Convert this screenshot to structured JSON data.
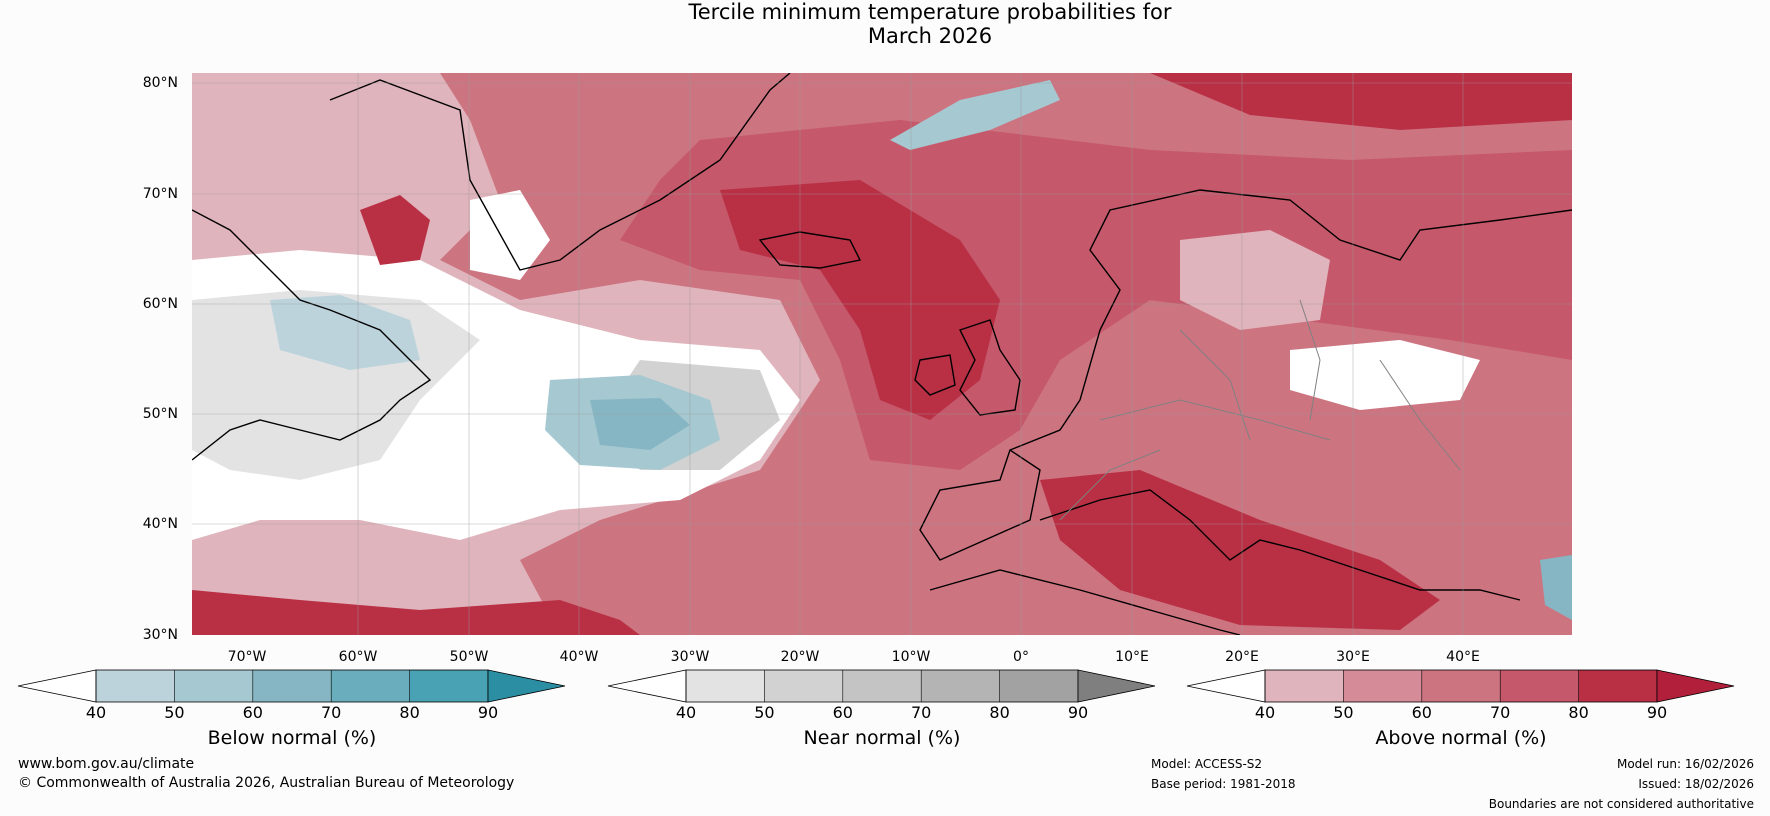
{
  "title": {
    "line1": "Tercile minimum temperature probabilities for",
    "line2": "March 2026"
  },
  "map": {
    "latitude_labels": [
      "80°N",
      "70°N",
      "60°N",
      "50°N",
      "40°N",
      "30°N"
    ],
    "longitude_labels": [
      "70°W",
      "60°W",
      "50°W",
      "40°W",
      "30°W",
      "20°W",
      "10°W",
      "0°",
      "10°E",
      "20°E",
      "30°E",
      "40°E"
    ],
    "colors": {
      "ocean_above_high": "#b93045",
      "above_40": "#e0b4bc",
      "above_50": "#d58c98",
      "above_60": "#cd7481",
      "above_70": "#c5586a",
      "above_80": "#b93045",
      "below_50": "#bcd3dc",
      "below_60": "#a6c8d1",
      "below_70": "#86b6c3",
      "near_50": "#e3e3e3",
      "near_60": "#d2d2d2",
      "white": "#ffffff",
      "coast": "#000000",
      "border": "#808080",
      "grid": "#9a9a9a"
    }
  },
  "colorbars": [
    {
      "name": "Below normal (%)",
      "ticks": [
        "40",
        "50",
        "60",
        "70",
        "80",
        "90"
      ],
      "colors": [
        "#ffffff",
        "#bcd3dc",
        "#a6c8d1",
        "#86b6c3",
        "#6aaebd",
        "#49a2b4",
        "#2c8ea3"
      ]
    },
    {
      "name": "Near normal (%)",
      "ticks": [
        "40",
        "50",
        "60",
        "70",
        "80",
        "90"
      ],
      "colors": [
        "#ffffff",
        "#e3e3e3",
        "#d2d2d2",
        "#c4c4c4",
        "#b4b4b4",
        "#a2a2a2",
        "#7f7f7f"
      ]
    },
    {
      "name": "Above normal (%)",
      "ticks": [
        "40",
        "50",
        "60",
        "70",
        "80",
        "90"
      ],
      "colors": [
        "#ffffff",
        "#e0b4bc",
        "#d58c98",
        "#cd7481",
        "#c5586a",
        "#b93045",
        "#b21f3a"
      ]
    }
  ],
  "footer": {
    "website": "www.bom.gov.au/climate",
    "copyright": "© Commonwealth of Australia 2026, Australian Bureau of Meteorology",
    "model": "Model: ACCESS-S2",
    "base_period": "Base period: 1981-2018",
    "model_run": "Model run: 16/02/2026",
    "issued": "Issued: 18/02/2026",
    "disclaimer": "Boundaries are not considered authoritative"
  }
}
